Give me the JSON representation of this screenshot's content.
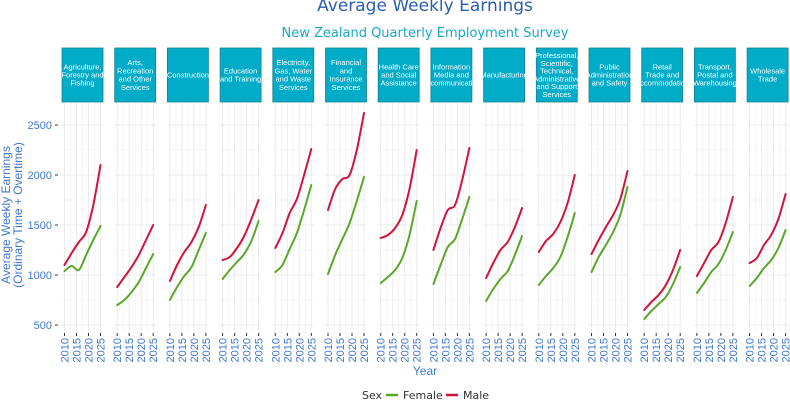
{
  "chart_data": {
    "type": "line",
    "title": "Average Weekly Earnings",
    "subtitle": "New Zealand Quarterly Employment Survey",
    "xlabel": "Year",
    "ylabel": [
      "Average Weekly Earnings",
      "(Ordinary Time + Overtime)"
    ],
    "ylim": [
      500,
      2700
    ],
    "xlim": [
      2008.5,
      2026.5
    ],
    "y_ticks": [
      500,
      1000,
      1500,
      2000,
      2500
    ],
    "x_ticks": [
      2010,
      2015,
      2020,
      2025
    ],
    "grid": true,
    "legend": {
      "title": "Sex",
      "placement": "bottom",
      "entries": [
        "Female",
        "Male"
      ]
    },
    "colors": {
      "Female": "#5aa829",
      "Male": "#d0143c",
      "strip": "#00acc8",
      "strip_border": "#1b7f92"
    },
    "x": [
      2010,
      2013,
      2016,
      2019,
      2022,
      2025
    ],
    "facets": [
      {
        "name": "Agriculture, Forestry and Fishing",
        "label_lines": [
          "Agriculture,",
          "Forestry and",
          "Fishing"
        ],
        "Female": [
          1040,
          1090,
          1050,
          1200,
          1350,
          1490
        ],
        "Male": [
          1100,
          1220,
          1330,
          1430,
          1700,
          2100
        ]
      },
      {
        "name": "Arts, Recreation and Other Services",
        "label_lines": [
          "Arts,",
          "Recreation",
          "and Other",
          "Services"
        ],
        "Female": [
          700,
          750,
          830,
          930,
          1070,
          1210
        ],
        "Male": [
          880,
          980,
          1080,
          1200,
          1350,
          1500
        ]
      },
      {
        "name": "Construction",
        "label_lines": [
          "Construction"
        ],
        "Female": [
          750,
          880,
          990,
          1080,
          1250,
          1420
        ],
        "Male": [
          940,
          1100,
          1230,
          1330,
          1480,
          1700
        ]
      },
      {
        "name": "Education and Training",
        "label_lines": [
          "Education",
          "and Training"
        ],
        "Female": [
          960,
          1050,
          1130,
          1210,
          1340,
          1540
        ],
        "Male": [
          1150,
          1180,
          1270,
          1390,
          1560,
          1750
        ]
      },
      {
        "name": "Electricity, Gas, Water and Waste Services",
        "label_lines": [
          "Electricity,",
          "Gas, Water",
          "and Waste",
          "Services"
        ],
        "Female": [
          1030,
          1100,
          1260,
          1420,
          1650,
          1900
        ],
        "Male": [
          1270,
          1420,
          1620,
          1760,
          2000,
          2260
        ]
      },
      {
        "name": "Financial and Insurance Services",
        "label_lines": [
          "Financial",
          "and",
          "Insurance",
          "Services"
        ],
        "Female": [
          1010,
          1200,
          1360,
          1520,
          1740,
          1980
        ],
        "Male": [
          1650,
          1860,
          1960,
          2000,
          2250,
          2620
        ]
      },
      {
        "name": "Health Care and Social Assistance",
        "label_lines": [
          "Health Care",
          "and Social",
          "Assistance"
        ],
        "Female": [
          920,
          980,
          1050,
          1170,
          1400,
          1740
        ],
        "Male": [
          1370,
          1400,
          1470,
          1600,
          1860,
          2250
        ]
      },
      {
        "name": "Information Media and Telecommunications",
        "label_lines": [
          "Information",
          "Media and",
          "communicati"
        ],
        "Female": [
          910,
          1100,
          1280,
          1360,
          1560,
          1780
        ],
        "Male": [
          1250,
          1470,
          1650,
          1700,
          1950,
          2270
        ]
      },
      {
        "name": "Manufacturing",
        "label_lines": [
          "Manufacturing"
        ],
        "Female": [
          740,
          860,
          960,
          1040,
          1200,
          1390
        ],
        "Male": [
          970,
          1120,
          1250,
          1330,
          1480,
          1670
        ]
      },
      {
        "name": "Professional, Scientific, Technical, Administrative and Support Services",
        "label_lines": [
          "Professional,",
          "Scientific,",
          "Technical,",
          "Administrative",
          "and Support",
          "Services"
        ],
        "Female": [
          900,
          990,
          1070,
          1180,
          1380,
          1620
        ],
        "Male": [
          1230,
          1340,
          1410,
          1530,
          1720,
          2000
        ]
      },
      {
        "name": "Public Administration and Safety",
        "label_lines": [
          "Public",
          "Administration",
          "and Safety"
        ],
        "Female": [
          1030,
          1180,
          1300,
          1430,
          1600,
          1880
        ],
        "Male": [
          1210,
          1350,
          1480,
          1600,
          1760,
          2040
        ]
      },
      {
        "name": "Retail Trade and Accommodation",
        "label_lines": [
          "Retail",
          "Trade and",
          "Accommodation"
        ],
        "Female": [
          560,
          640,
          710,
          780,
          910,
          1080
        ],
        "Male": [
          650,
          730,
          800,
          900,
          1050,
          1250
        ]
      },
      {
        "name": "Transport, Postal and Warehousing",
        "label_lines": [
          "Transport,",
          "Postal and",
          "Warehousing"
        ],
        "Female": [
          820,
          920,
          1030,
          1110,
          1250,
          1430
        ],
        "Male": [
          990,
          1120,
          1250,
          1330,
          1520,
          1780
        ]
      },
      {
        "name": "Wholesale Trade",
        "label_lines": [
          "Wholesale",
          "Trade"
        ],
        "Female": [
          890,
          970,
          1070,
          1150,
          1270,
          1450
        ],
        "Male": [
          1120,
          1170,
          1300,
          1400,
          1560,
          1810
        ]
      }
    ]
  }
}
